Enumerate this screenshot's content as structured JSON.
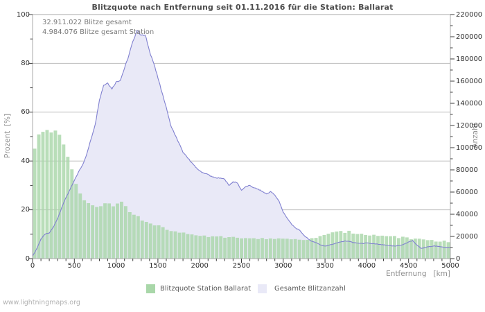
{
  "footer": {
    "watermark": "www.lightningmaps.org"
  },
  "chart_data": {
    "type": "area",
    "title": "Blitzquote nach Entfernung seit 01.11.2016 für die Station: Ballarat",
    "annotations": [
      "32.911.022 Blitze gesamt",
      "4.984.076 Blitze gesamt Station"
    ],
    "x_start_km": 0,
    "x_step_km": 50,
    "axes": {
      "x": {
        "label": "Entfernung   [km]",
        "range": [
          0,
          5000
        ],
        "ticks": [
          0,
          500,
          1000,
          1500,
          2000,
          2500,
          3000,
          3500,
          4000,
          4500,
          5000
        ],
        "minor_step": 100
      },
      "y_left": {
        "label": "Prozent  [%]",
        "range": [
          0,
          100
        ],
        "ticks": [
          0,
          20,
          40,
          60,
          80,
          100
        ],
        "minor_step": 10,
        "gridlines": [
          20,
          40,
          60,
          80
        ]
      },
      "y_right": {
        "label": "Anzahl",
        "range": [
          0,
          220000
        ],
        "ticks": [
          0,
          20000,
          40000,
          60000,
          80000,
          100000,
          120000,
          140000,
          160000,
          180000,
          200000,
          220000
        ],
        "minor_step": 10000
      }
    },
    "series": [
      {
        "name": "Blitzquote Station Ballarat",
        "axis": "left",
        "style": "bars",
        "unit": "%",
        "values": [
          45,
          50.5,
          52,
          53,
          51.5,
          52.5,
          50.5,
          46.5,
          42,
          36.5,
          31,
          26.5,
          24,
          22.5,
          21.5,
          21,
          21.5,
          22.3,
          22.8,
          21.7,
          22.3,
          23,
          21.5,
          19.3,
          17.8,
          17,
          15.9,
          15,
          14.4,
          13.8,
          13.4,
          12.8,
          11.8,
          11.4,
          11,
          10.6,
          10.3,
          10,
          9.8,
          9.6,
          9.5,
          9.3,
          9.2,
          9.1,
          9,
          8.9,
          8.7,
          8.6,
          8.6,
          8.5,
          8.4,
          8.5,
          8.6,
          8.5,
          8.4,
          8.3,
          8.2,
          8.2,
          8.1,
          8,
          8,
          7.9,
          7.8,
          7.8,
          7.7,
          7.7,
          7.8,
          8.1,
          8.5,
          9,
          9.6,
          10.1,
          10.5,
          10.8,
          11,
          10.9,
          11,
          10.6,
          10.3,
          10.1,
          10,
          9.8,
          9.6,
          9.5,
          9.4,
          9.3,
          9.2,
          9,
          8.8,
          8.6,
          8.3,
          8.1,
          8,
          7.8,
          7.7,
          7.5,
          7.4,
          7.2,
          7.1,
          7,
          6.9
        ]
      },
      {
        "name": "Gesamte Blitzanzahl",
        "axis": "right",
        "style": "area-line",
        "unit": "count",
        "values": [
          2200,
          8800,
          17600,
          22000,
          23100,
          28600,
          36300,
          46200,
          55000,
          62700,
          70400,
          78100,
          84700,
          94600,
          107800,
          121000,
          143000,
          156200,
          158400,
          152900,
          159500,
          160600,
          171600,
          182600,
          195800,
          205700,
          201300,
          201300,
          187000,
          176000,
          162800,
          149600,
          136400,
          121000,
          112200,
          104500,
          95700,
          91300,
          86900,
          82500,
          79200,
          77000,
          75900,
          73700,
          72600,
          72600,
          71500,
          66000,
          69300,
          68200,
          61600,
          64900,
          66000,
          63800,
          62700,
          60500,
          58300,
          60500,
          57200,
          51700,
          41800,
          36300,
          30800,
          27500,
          25300,
          20900,
          17600,
          15400,
          14300,
          12100,
          11400,
          12100,
          13200,
          14300,
          15400,
          15800,
          15400,
          14300,
          13900,
          13600,
          14100,
          13600,
          13200,
          12800,
          12300,
          11900,
          11400,
          11400,
          11900,
          13200,
          15000,
          16300,
          12100,
          9200,
          9900,
          11000,
          11400,
          11000,
          10600,
          10100,
          9900
        ]
      }
    ],
    "colors": {
      "quote_fill": "#a9d7a9",
      "total_fill": "#e9e9f7",
      "total_line": "#8080d0",
      "grid": "#bdbdbd",
      "frame": "#a8a8a8",
      "tick": "#3a3a3a"
    },
    "legend_position": "bottom"
  }
}
